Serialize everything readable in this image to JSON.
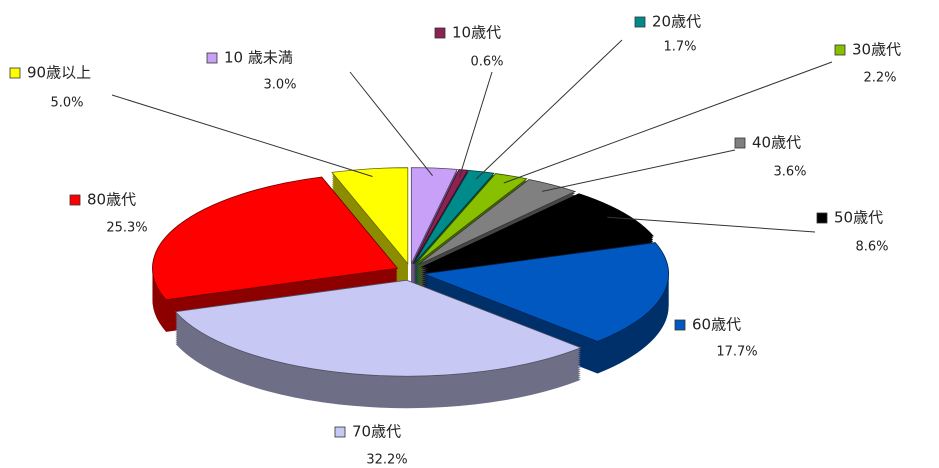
{
  "chart_data": {
    "type": "pie",
    "categories": [
      "10 歳未満",
      "10歳代",
      "20歳代",
      "30歳代",
      "40歳代",
      "50歳代",
      "60歳代",
      "70歳代",
      "80歳代",
      "90歳以上"
    ],
    "values": [
      3.0,
      0.6,
      1.7,
      2.2,
      3.6,
      8.6,
      17.7,
      32.2,
      25.3,
      5.0
    ],
    "value_labels": [
      "3.0%",
      "0.6%",
      "1.7%",
      "2.2%",
      "3.6%",
      "8.6%",
      "17.7%",
      "32.2%",
      "25.3%",
      "5.0%"
    ],
    "colors": [
      "#c8a0f8",
      "#8b2252",
      "#008b8b",
      "#88c000",
      "#808080",
      "#000000",
      "#0058c0",
      "#c8c8f4",
      "#ff0000",
      "#ffff00"
    ]
  }
}
